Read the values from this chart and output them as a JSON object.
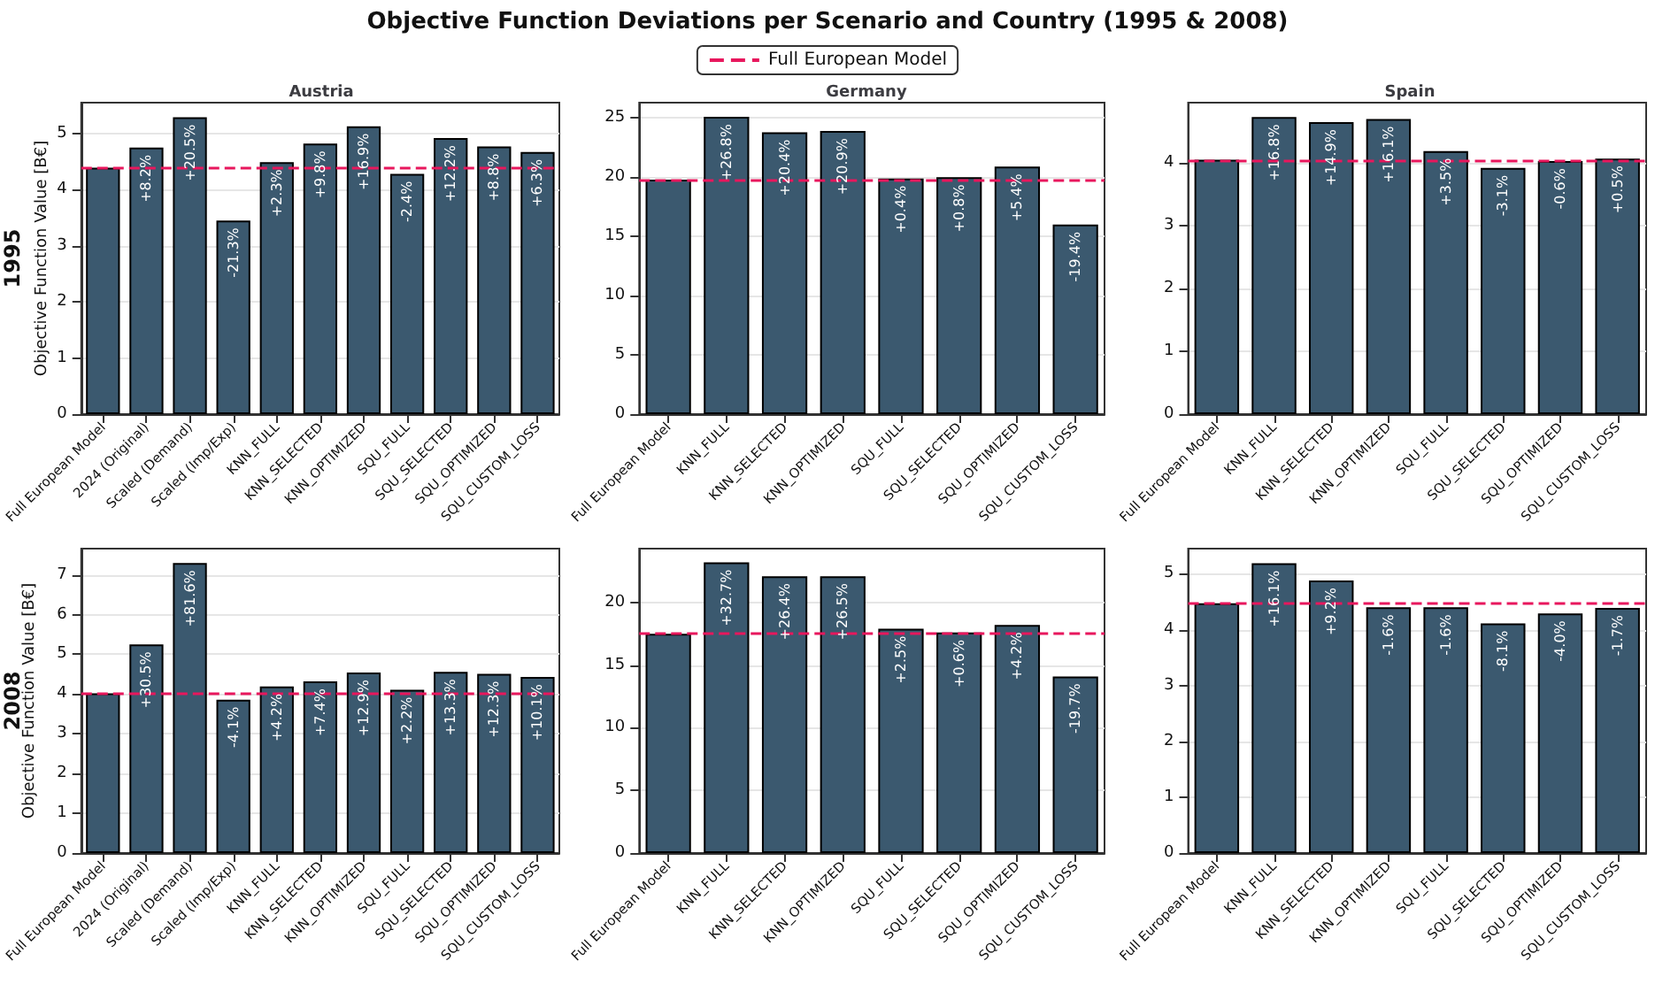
{
  "chart_data": [
    {
      "type": "bar",
      "title": "Austria",
      "subtitle": "1995",
      "ylabel": "Objective Function Value [B€]",
      "legend": "top",
      "grid": "y",
      "categories": [
        "Full European Model",
        "2024 (Original)",
        "Scaled (Demand)",
        "Scaled (Imp/Exp)",
        "KNN_FULL",
        "KNN_SELECTED",
        "KNN_OPTIMIZED",
        "SQU_FULL",
        "SQU_SELECTED",
        "SQU_OPTIMIZED",
        "SQU_CUSTOM_LOSS"
      ],
      "values": [
        4.39,
        4.75,
        5.29,
        3.45,
        4.49,
        4.82,
        5.13,
        4.28,
        4.92,
        4.77,
        4.67
      ],
      "color": "#3b596f",
      "annotations": [
        "Objective Function Deviations per Scenario and Country (1995 & 2008)",
        {
          "text": "+8.2%",
          "x": "2024 (Original)",
          "y": 4.75
        },
        {
          "text": "+20.5%",
          "x": "Scaled (Demand)",
          "y": 5.29
        },
        {
          "text": "-21.3%",
          "x": "Scaled (Imp/Exp)",
          "y": 3.45
        },
        {
          "text": "+2.3%",
          "x": "KNN_FULL",
          "y": 4.49
        },
        {
          "text": "+9.8%",
          "x": "KNN_SELECTED",
          "y": 4.82
        },
        {
          "text": "+16.9%",
          "x": "KNN_OPTIMIZED",
          "y": 5.13
        },
        {
          "text": "-2.4%",
          "x": "SQU_FULL",
          "y": 4.28
        },
        {
          "text": "+12.2%",
          "x": "SQU_SELECTED",
          "y": 4.92
        },
        {
          "text": "+8.8%",
          "x": "SQU_OPTIMIZED",
          "y": 4.77
        },
        {
          "text": "+6.3%",
          "x": "SQU_CUSTOM_LOSS",
          "y": 4.67
        }
      ],
      "ylim": [
        0,
        5.55
      ],
      "yticks": [
        0,
        1,
        2,
        3,
        4,
        5
      ],
      "ref_lines": [
        {
          "axis": "y",
          "value": 4.39,
          "label": "Full European Model",
          "color": "#e8175d",
          "line_style": "dashed"
        }
      ]
    },
    {
      "type": "bar",
      "title": "Germany",
      "grid": "y",
      "categories": [
        "Full European Model",
        "KNN_FULL",
        "KNN_SELECTED",
        "KNN_OPTIMIZED",
        "SQU_FULL",
        "SQU_SELECTED",
        "SQU_OPTIMIZED",
        "SQU_CUSTOM_LOSS"
      ],
      "values": [
        19.8,
        25.1,
        23.8,
        23.9,
        19.9,
        20.0,
        20.9,
        16.0
      ],
      "color": "#3b596f",
      "annotations": [
        {
          "text": "+26.8%",
          "x": "KNN_FULL",
          "y": 25.1
        },
        {
          "text": "+20.4%",
          "x": "KNN_SELECTED",
          "y": 23.8
        },
        {
          "text": "+20.9%",
          "x": "KNN_OPTIMIZED",
          "y": 23.9
        },
        {
          "text": "+0.4%",
          "x": "SQU_FULL",
          "y": 19.9
        },
        {
          "text": "+0.8%",
          "x": "SQU_SELECTED",
          "y": 20.0
        },
        {
          "text": "+5.4%",
          "x": "SQU_OPTIMIZED",
          "y": 20.9
        },
        {
          "text": "-19.4%",
          "x": "SQU_CUSTOM_LOSS",
          "y": 16.0
        }
      ],
      "ylim": [
        0,
        26.3
      ],
      "yticks": [
        0,
        5,
        10,
        15,
        20,
        25
      ],
      "ref_lines": [
        {
          "axis": "y",
          "value": 19.8,
          "color": "#e8175d",
          "line_style": "dashed"
        }
      ]
    },
    {
      "type": "bar",
      "title": "Spain",
      "grid": "y",
      "categories": [
        "Full European Model",
        "KNN_FULL",
        "KNN_SELECTED",
        "KNN_OPTIMIZED",
        "SQU_FULL",
        "SQU_SELECTED",
        "SQU_OPTIMIZED",
        "SQU_CUSTOM_LOSS"
      ],
      "values": [
        4.05,
        4.73,
        4.65,
        4.7,
        4.19,
        3.92,
        4.03,
        4.07
      ],
      "color": "#3b596f",
      "annotations": [
        {
          "text": "+16.8%",
          "x": "KNN_FULL",
          "y": 4.73
        },
        {
          "text": "+14.9%",
          "x": "KNN_SELECTED",
          "y": 4.65
        },
        {
          "text": "+16.1%",
          "x": "KNN_OPTIMIZED",
          "y": 4.7
        },
        {
          "text": "+3.5%",
          "x": "SQU_FULL",
          "y": 4.19
        },
        {
          "text": "-3.1%",
          "x": "SQU_SELECTED",
          "y": 3.92
        },
        {
          "text": "-0.6%",
          "x": "SQU_OPTIMIZED",
          "y": 4.03
        },
        {
          "text": "+0.5%",
          "x": "SQU_CUSTOM_LOSS",
          "y": 4.07
        }
      ],
      "ylim": [
        0,
        4.96
      ],
      "yticks": [
        0,
        1,
        2,
        3,
        4
      ],
      "ref_lines": [
        {
          "axis": "y",
          "value": 4.05,
          "color": "#e8175d",
          "line_style": "dashed"
        }
      ]
    },
    {
      "type": "bar",
      "subtitle": "2008",
      "ylabel": "Objective Function Value [B€]",
      "grid": "y",
      "categories": [
        "Full European Model",
        "2024 (Original)",
        "Scaled (Demand)",
        "Scaled (Imp/Exp)",
        "KNN_FULL",
        "KNN_SELECTED",
        "KNN_OPTIMIZED",
        "SQU_FULL",
        "SQU_SELECTED",
        "SQU_OPTIMIZED",
        "SQU_CUSTOM_LOSS"
      ],
      "values": [
        4.02,
        5.25,
        7.3,
        3.86,
        4.19,
        4.32,
        4.54,
        4.11,
        4.56,
        4.51,
        4.43
      ],
      "color": "#3b596f",
      "annotations": [
        {
          "text": "+30.5%",
          "x": "2024 (Original)",
          "y": 5.25
        },
        {
          "text": "+81.6%",
          "x": "Scaled (Demand)",
          "y": 7.3
        },
        {
          "text": "-4.1%",
          "x": "Scaled (Imp/Exp)",
          "y": 3.86
        },
        {
          "text": "+4.2%",
          "x": "KNN_FULL",
          "y": 4.19
        },
        {
          "text": "+7.4%",
          "x": "KNN_SELECTED",
          "y": 4.32
        },
        {
          "text": "+12.9%",
          "x": "KNN_OPTIMIZED",
          "y": 4.54
        },
        {
          "text": "+2.2%",
          "x": "SQU_FULL",
          "y": 4.11
        },
        {
          "text": "+13.3%",
          "x": "SQU_SELECTED",
          "y": 4.56
        },
        {
          "text": "+12.3%",
          "x": "SQU_OPTIMIZED",
          "y": 4.51
        },
        {
          "text": "+10.1%",
          "x": "SQU_CUSTOM_LOSS",
          "y": 4.43
        }
      ],
      "ylim": [
        0,
        7.66
      ],
      "yticks": [
        0,
        1,
        2,
        3,
        4,
        5,
        6,
        7
      ],
      "ref_lines": [
        {
          "axis": "y",
          "value": 4.02,
          "color": "#e8175d",
          "line_style": "dashed"
        }
      ]
    },
    {
      "type": "bar",
      "grid": "y",
      "categories": [
        "Full European Model",
        "KNN_FULL",
        "KNN_SELECTED",
        "KNN_OPTIMIZED",
        "SQU_FULL",
        "SQU_SELECTED",
        "SQU_OPTIMIZED",
        "SQU_CUSTOM_LOSS"
      ],
      "values": [
        17.5,
        23.2,
        22.1,
        22.1,
        17.9,
        17.6,
        18.2,
        14.1
      ],
      "color": "#3b596f",
      "annotations": [
        {
          "text": "+32.7%",
          "x": "KNN_FULL",
          "y": 23.2
        },
        {
          "text": "+26.4%",
          "x": "KNN_SELECTED",
          "y": 22.1
        },
        {
          "text": "+26.5%",
          "x": "KNN_OPTIMIZED",
          "y": 22.1
        },
        {
          "text": "+2.5%",
          "x": "SQU_FULL",
          "y": 17.9
        },
        {
          "text": "+0.6%",
          "x": "SQU_SELECTED",
          "y": 17.6
        },
        {
          "text": "+4.2%",
          "x": "SQU_OPTIMIZED",
          "y": 18.2
        },
        {
          "text": "-19.7%",
          "x": "SQU_CUSTOM_LOSS",
          "y": 14.1
        }
      ],
      "ylim": [
        0,
        24.3
      ],
      "yticks": [
        0,
        5,
        10,
        15,
        20
      ],
      "ref_lines": [
        {
          "axis": "y",
          "value": 17.5,
          "color": "#e8175d",
          "line_style": "dashed"
        }
      ]
    },
    {
      "type": "bar",
      "grid": "y",
      "categories": [
        "Full European Model",
        "KNN_FULL",
        "KNN_SELECTED",
        "KNN_OPTIMIZED",
        "SQU_FULL",
        "SQU_SELECTED",
        "SQU_OPTIMIZED",
        "SQU_CUSTOM_LOSS"
      ],
      "values": [
        4.47,
        5.19,
        4.88,
        4.4,
        4.4,
        4.11,
        4.29,
        4.39
      ],
      "color": "#3b596f",
      "annotations": [
        {
          "text": "+16.1%",
          "x": "KNN_FULL",
          "y": 5.19
        },
        {
          "text": "+9.2%",
          "x": "KNN_SELECTED",
          "y": 4.88
        },
        {
          "text": "-1.6%",
          "x": "KNN_OPTIMIZED",
          "y": 4.4
        },
        {
          "text": "-1.6%",
          "x": "SQU_FULL",
          "y": 4.4
        },
        {
          "text": "-8.1%",
          "x": "SQU_SELECTED",
          "y": 4.11
        },
        {
          "text": "-4.0%",
          "x": "SQU_OPTIMIZED",
          "y": 4.29
        },
        {
          "text": "-1.7%",
          "x": "SQU_CUSTOM_LOSS",
          "y": 4.39
        }
      ],
      "ylim": [
        0,
        5.45
      ],
      "yticks": [
        0,
        1,
        2,
        3,
        4,
        5
      ],
      "ref_lines": [
        {
          "axis": "y",
          "value": 4.47,
          "color": "#e8175d",
          "line_style": "dashed"
        }
      ]
    }
  ]
}
